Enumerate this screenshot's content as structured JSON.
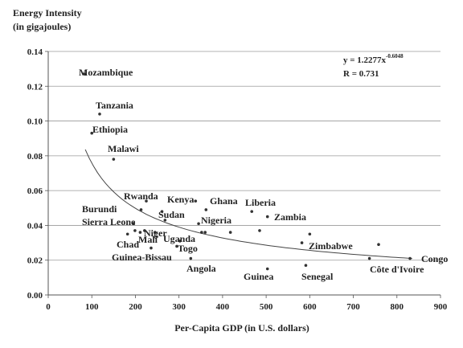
{
  "chart_data": {
    "type": "scatter",
    "ylabel_line1": "Energy Intensity",
    "ylabel_line2": "(in gigajoules)",
    "xlabel": "Per-Capita GDP (in U.S. dollars)",
    "xlim": [
      0,
      900
    ],
    "ylim": [
      0,
      0.14
    ],
    "xticks": [
      {
        "value": 0,
        "label": "0"
      },
      {
        "value": 100,
        "label": "100"
      },
      {
        "value": 200,
        "label": "200"
      },
      {
        "value": 300,
        "label": "300"
      },
      {
        "value": 400,
        "label": "400"
      },
      {
        "value": 500,
        "label": "500"
      },
      {
        "value": 600,
        "label": "600"
      },
      {
        "value": 700,
        "label": "700"
      },
      {
        "value": 800,
        "label": "800"
      },
      {
        "value": 900,
        "label": "900"
      }
    ],
    "yticks": [
      {
        "value": 0,
        "label": "0.00"
      },
      {
        "value": 0.02,
        "label": "0.02"
      },
      {
        "value": 0.04,
        "label": "0.04"
      },
      {
        "value": 0.06,
        "label": "0.06"
      },
      {
        "value": 0.08,
        "label": "0.08"
      },
      {
        "value": 0.1,
        "label": "0.10"
      },
      {
        "value": 0.12,
        "label": "0.12"
      },
      {
        "value": 0.14,
        "label": "0.14"
      }
    ],
    "grid": true,
    "equation_base": "y = 1.2277x",
    "equation_exponent": "-0.6048",
    "r_value": "R = 0.731",
    "trendline": {
      "coefficient": 1.2277,
      "exponent": -0.6048,
      "x_range": [
        85,
        835
      ]
    },
    "points": [
      {
        "x": 83,
        "y": 0.127,
        "label": "Mozambique"
      },
      {
        "x": 118,
        "y": 0.104,
        "label": "Tanzania"
      },
      {
        "x": 100,
        "y": 0.093,
        "label": "Ethiopia"
      },
      {
        "x": 150,
        "y": 0.078,
        "label": "Malawi"
      },
      {
        "x": 225,
        "y": 0.054,
        "label": "Rwanda"
      },
      {
        "x": 338,
        "y": 0.054,
        "label": "Kenya"
      },
      {
        "x": 362,
        "y": 0.049,
        "label": "Ghana"
      },
      {
        "x": 467,
        "y": 0.048,
        "label": "Liberia"
      },
      {
        "x": 213,
        "y": 0.049,
        "label": "Burundi"
      },
      {
        "x": 261,
        "y": 0.048,
        "label": "Sudan"
      },
      {
        "x": 345,
        "y": 0.041,
        "label": "Nigeria"
      },
      {
        "x": 503,
        "y": 0.045,
        "label": "Zambia"
      },
      {
        "x": 196,
        "y": 0.041,
        "label": "Sierra Leone"
      },
      {
        "x": 221,
        "y": 0.037,
        "label": "Niger"
      },
      {
        "x": 182,
        "y": 0.035,
        "label": "Chad"
      },
      {
        "x": 211,
        "y": 0.036,
        "label": "Mali"
      },
      {
        "x": 302,
        "y": 0.031,
        "label": "Uganda"
      },
      {
        "x": 295,
        "y": 0.028,
        "label": "Togo"
      },
      {
        "x": 236,
        "y": 0.027,
        "label": "Guinea-Bissau"
      },
      {
        "x": 327,
        "y": 0.021,
        "label": "Angola"
      },
      {
        "x": 503,
        "y": 0.015,
        "label": "Guinea"
      },
      {
        "x": 591,
        "y": 0.017,
        "label": "Senegal"
      },
      {
        "x": 600,
        "y": 0.035,
        "label": "Zimbabwe"
      },
      {
        "x": 737,
        "y": 0.021,
        "label": "Côte d'Ivoire"
      },
      {
        "x": 830,
        "y": 0.021,
        "label": "Congo"
      }
    ],
    "unlabeled_points": [
      {
        "x": 352,
        "y": 0.036
      },
      {
        "x": 418,
        "y": 0.036
      },
      {
        "x": 485,
        "y": 0.037
      },
      {
        "x": 582,
        "y": 0.03
      },
      {
        "x": 758,
        "y": 0.029
      },
      {
        "x": 199,
        "y": 0.037
      },
      {
        "x": 245,
        "y": 0.036
      },
      {
        "x": 360,
        "y": 0.036
      },
      {
        "x": 268,
        "y": 0.043
      }
    ]
  }
}
